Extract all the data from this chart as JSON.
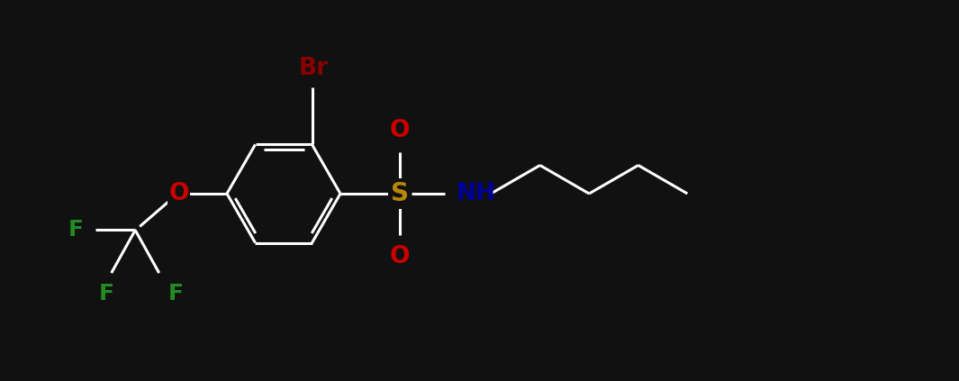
{
  "background_color": "#111111",
  "figsize": [
    10.65,
    4.23
  ],
  "dpi": 100,
  "bond_width": 2.2,
  "bond_color": "white",
  "colors": {
    "Br": "#8B0000",
    "O": "#CC0000",
    "S": "#B8860B",
    "NH": "#000099",
    "F": "#228B22",
    "C": "white"
  },
  "fontsize": 18,
  "bl": 0.62
}
